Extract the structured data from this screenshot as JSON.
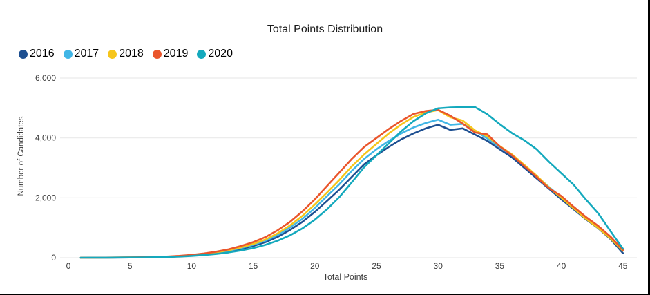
{
  "chart_data": {
    "type": "line",
    "title": "Total Points Distribution",
    "xlabel": "Total Points",
    "ylabel": "Number of Candidates",
    "xlim": [
      0,
      45
    ],
    "ylim": [
      0,
      6000
    ],
    "grid": "horizontal",
    "legend_position": "top-left",
    "xticks": {
      "values": [
        0,
        5,
        10,
        15,
        20,
        25,
        30,
        35,
        40,
        45
      ],
      "labels": [
        "0",
        "5",
        "10",
        "15",
        "20",
        "25",
        "30",
        "35",
        "40",
        "45"
      ]
    },
    "yticks": {
      "values": [
        0,
        2000,
        4000,
        6000
      ],
      "labels": [
        "0",
        "2,000",
        "4,000",
        "6,000"
      ]
    },
    "x": [
      1,
      2,
      3,
      4,
      5,
      6,
      7,
      8,
      9,
      10,
      11,
      12,
      13,
      14,
      15,
      16,
      17,
      18,
      19,
      20,
      21,
      22,
      23,
      24,
      25,
      26,
      27,
      28,
      29,
      30,
      31,
      32,
      33,
      34,
      35,
      36,
      37,
      38,
      39,
      40,
      41,
      42,
      43,
      44,
      45
    ],
    "series": [
      {
        "name": "2016",
        "color": "#1d4f91",
        "values": [
          0,
          2,
          3,
          5,
          8,
          12,
          18,
          28,
          45,
          70,
          105,
          150,
          210,
          290,
          390,
          520,
          700,
          930,
          1200,
          1530,
          1900,
          2280,
          2700,
          3120,
          3420,
          3700,
          3950,
          4150,
          4320,
          4440,
          4270,
          4320,
          4110,
          3900,
          3620,
          3350,
          3000,
          2650,
          2300,
          1950,
          1620,
          1280,
          980,
          620,
          150
        ]
      },
      {
        "name": "2017",
        "color": "#41b6e6",
        "values": [
          0,
          2,
          3,
          6,
          9,
          14,
          20,
          32,
          50,
          78,
          115,
          165,
          230,
          320,
          430,
          570,
          760,
          1010,
          1300,
          1660,
          2060,
          2460,
          2900,
          3300,
          3620,
          3900,
          4150,
          4350,
          4500,
          4610,
          4440,
          4470,
          4230,
          3980,
          3700,
          3420,
          3080,
          2720,
          2360,
          2020,
          1680,
          1330,
          1020,
          660,
          260
        ]
      },
      {
        "name": "2018",
        "color": "#f6c51b",
        "values": [
          0,
          2,
          4,
          6,
          10,
          15,
          22,
          35,
          55,
          85,
          125,
          180,
          250,
          345,
          460,
          610,
          820,
          1080,
          1400,
          1780,
          2180,
          2600,
          3050,
          3450,
          3800,
          4150,
          4450,
          4700,
          4850,
          4930,
          4690,
          4580,
          4250,
          4050,
          3730,
          3450,
          3100,
          2740,
          2340,
          2000,
          1650,
          1300,
          990,
          640,
          230
        ]
      },
      {
        "name": "2019",
        "color": "#ea552b",
        "values": [
          0,
          3,
          4,
          7,
          11,
          17,
          25,
          40,
          62,
          95,
          140,
          200,
          280,
          390,
          520,
          690,
          920,
          1200,
          1550,
          1950,
          2400,
          2850,
          3300,
          3700,
          4000,
          4300,
          4570,
          4800,
          4900,
          4940,
          4740,
          4480,
          4180,
          4120,
          3720,
          3420,
          3060,
          2700,
          2320,
          2060,
          1700,
          1360,
          1060,
          700,
          260
        ]
      },
      {
        "name": "2020",
        "color": "#14a9bd",
        "values": [
          0,
          2,
          3,
          5,
          8,
          12,
          17,
          26,
          40,
          60,
          88,
          125,
          175,
          240,
          320,
          430,
          570,
          750,
          980,
          1270,
          1620,
          2030,
          2520,
          3020,
          3420,
          3820,
          4220,
          4560,
          4820,
          4990,
          5020,
          5030,
          5030,
          4790,
          4460,
          4160,
          3920,
          3620,
          3200,
          2820,
          2440,
          1940,
          1480,
          880,
          300
        ]
      }
    ]
  }
}
